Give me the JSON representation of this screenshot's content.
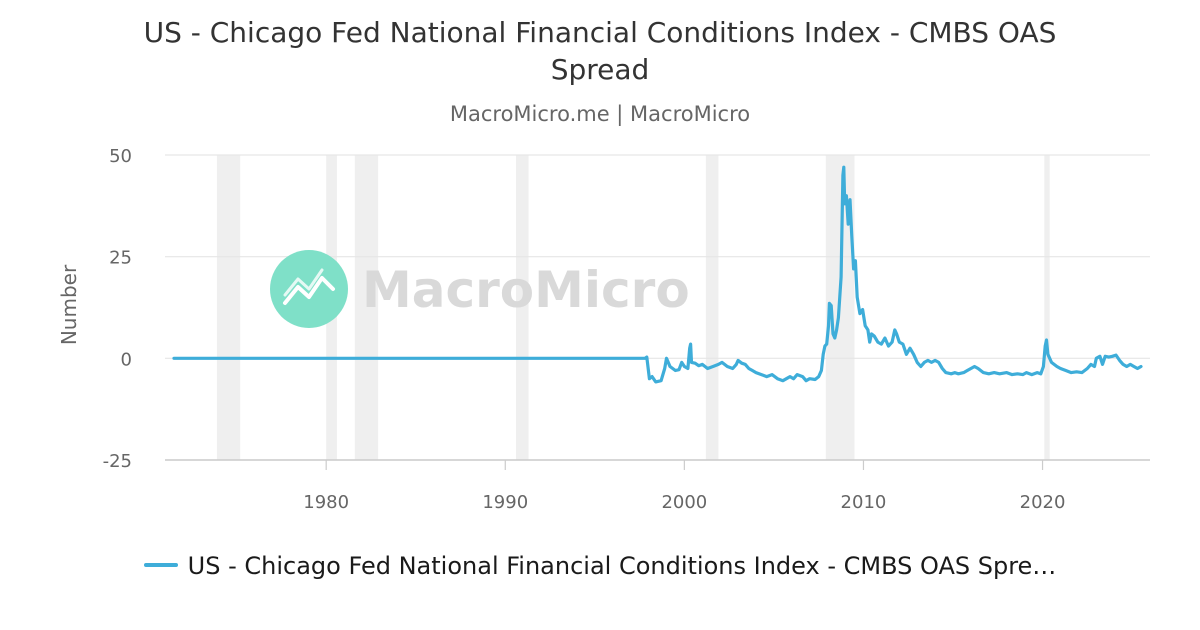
{
  "colors": {
    "series": "#3eadd9",
    "grid": "#e6e6e6",
    "recession_band": "#efefef",
    "axis": "#cccccc",
    "watermark_icon": "#7fe0c8",
    "watermark_text": "#d9d9d9"
  },
  "watermark": {
    "text": "MacroMicro"
  },
  "legend": {
    "label": "US - Chicago Fed National Financial Conditions Index - CMBS OAS Spre…"
  },
  "chart_data": {
    "type": "line",
    "title": "US - Chicago Fed National Financial Conditions Index - CMBS OAS Spread",
    "subtitle": "MacroMicro.me | MacroMicro",
    "ylabel": "Number",
    "xlabel": "",
    "xlim": [
      1971.0,
      2026.0
    ],
    "ylim": [
      -25,
      50
    ],
    "x_ticks": [
      1980,
      1990,
      2000,
      2010,
      2020
    ],
    "y_ticks": [
      50,
      25,
      0,
      -25
    ],
    "grid": "horizontal",
    "legend_position": "bottom-center",
    "recession_bands": [
      [
        1973.9,
        1975.2
      ],
      [
        1980.0,
        1980.6
      ],
      [
        1981.6,
        1982.9
      ],
      [
        1990.6,
        1991.3
      ],
      [
        2001.2,
        2001.9
      ],
      [
        2007.9,
        2009.5
      ],
      [
        2020.1,
        2020.4
      ]
    ],
    "series": [
      {
        "name": "US - Chicago Fed National Financial Conditions Index - CMBS OAS Spread",
        "points": [
          [
            1971.5,
            0.0
          ],
          [
            1997.8,
            0.0
          ],
          [
            1997.9,
            0.3
          ],
          [
            1998.05,
            -5.0
          ],
          [
            1998.2,
            -4.5
          ],
          [
            1998.4,
            -5.8
          ],
          [
            1998.7,
            -5.5
          ],
          [
            1998.9,
            -2.5
          ],
          [
            1999.0,
            0.0
          ],
          [
            1999.2,
            -2.0
          ],
          [
            1999.5,
            -3.0
          ],
          [
            1999.7,
            -2.8
          ],
          [
            1999.85,
            -1.0
          ],
          [
            2000.0,
            -2.0
          ],
          [
            2000.2,
            -2.5
          ],
          [
            2000.3,
            2.5
          ],
          [
            2000.35,
            3.5
          ],
          [
            2000.4,
            -1.0
          ],
          [
            2000.6,
            -1.2
          ],
          [
            2000.8,
            -1.8
          ],
          [
            2001.0,
            -1.5
          ],
          [
            2001.3,
            -2.5
          ],
          [
            2001.6,
            -2.0
          ],
          [
            2001.9,
            -1.5
          ],
          [
            2002.1,
            -1.0
          ],
          [
            2002.4,
            -2.0
          ],
          [
            2002.7,
            -2.5
          ],
          [
            2002.9,
            -1.5
          ],
          [
            2003.0,
            -0.5
          ],
          [
            2003.2,
            -1.2
          ],
          [
            2003.4,
            -1.5
          ],
          [
            2003.6,
            -2.5
          ],
          [
            2003.8,
            -3.0
          ],
          [
            2004.0,
            -3.5
          ],
          [
            2004.3,
            -4.0
          ],
          [
            2004.6,
            -4.5
          ],
          [
            2004.9,
            -4.0
          ],
          [
            2005.2,
            -5.0
          ],
          [
            2005.5,
            -5.5
          ],
          [
            2005.7,
            -5.0
          ],
          [
            2005.9,
            -4.5
          ],
          [
            2006.1,
            -5.0
          ],
          [
            2006.3,
            -4.0
          ],
          [
            2006.6,
            -4.5
          ],
          [
            2006.8,
            -5.5
          ],
          [
            2007.0,
            -5.0
          ],
          [
            2007.3,
            -5.2
          ],
          [
            2007.5,
            -4.5
          ],
          [
            2007.65,
            -3.0
          ],
          [
            2007.75,
            1.0
          ],
          [
            2007.85,
            3.0
          ],
          [
            2007.95,
            3.5
          ],
          [
            2008.05,
            8.0
          ],
          [
            2008.1,
            13.5
          ],
          [
            2008.2,
            13.0
          ],
          [
            2008.3,
            6.0
          ],
          [
            2008.4,
            5.0
          ],
          [
            2008.5,
            7.0
          ],
          [
            2008.6,
            10.0
          ],
          [
            2008.75,
            20.0
          ],
          [
            2008.85,
            45.0
          ],
          [
            2008.9,
            47.0
          ],
          [
            2008.95,
            38.0
          ],
          [
            2009.05,
            40.0
          ],
          [
            2009.15,
            33.0
          ],
          [
            2009.25,
            39.0
          ],
          [
            2009.35,
            30.0
          ],
          [
            2009.45,
            22.0
          ],
          [
            2009.55,
            24.0
          ],
          [
            2009.65,
            15.0
          ],
          [
            2009.8,
            11.0
          ],
          [
            2009.95,
            12.0
          ],
          [
            2010.1,
            8.0
          ],
          [
            2010.25,
            7.0
          ],
          [
            2010.35,
            4.0
          ],
          [
            2010.45,
            6.0
          ],
          [
            2010.6,
            5.5
          ],
          [
            2010.8,
            4.0
          ],
          [
            2011.0,
            3.5
          ],
          [
            2011.2,
            5.0
          ],
          [
            2011.4,
            3.0
          ],
          [
            2011.6,
            4.0
          ],
          [
            2011.75,
            7.0
          ],
          [
            2011.85,
            6.0
          ],
          [
            2012.0,
            4.0
          ],
          [
            2012.2,
            3.5
          ],
          [
            2012.4,
            1.0
          ],
          [
            2012.6,
            2.5
          ],
          [
            2012.8,
            1.0
          ],
          [
            2013.0,
            -1.0
          ],
          [
            2013.2,
            -2.0
          ],
          [
            2013.4,
            -1.0
          ],
          [
            2013.6,
            -0.5
          ],
          [
            2013.8,
            -1.0
          ],
          [
            2014.0,
            -0.5
          ],
          [
            2014.2,
            -1.0
          ],
          [
            2014.4,
            -2.5
          ],
          [
            2014.6,
            -3.5
          ],
          [
            2014.9,
            -3.8
          ],
          [
            2015.1,
            -3.5
          ],
          [
            2015.3,
            -3.8
          ],
          [
            2015.6,
            -3.5
          ],
          [
            2015.8,
            -3.0
          ],
          [
            2016.0,
            -2.5
          ],
          [
            2016.2,
            -2.0
          ],
          [
            2016.4,
            -2.5
          ],
          [
            2016.7,
            -3.5
          ],
          [
            2017.0,
            -3.8
          ],
          [
            2017.3,
            -3.5
          ],
          [
            2017.6,
            -3.8
          ],
          [
            2018.0,
            -3.5
          ],
          [
            2018.3,
            -4.0
          ],
          [
            2018.6,
            -3.8
          ],
          [
            2018.9,
            -4.0
          ],
          [
            2019.1,
            -3.5
          ],
          [
            2019.4,
            -4.0
          ],
          [
            2019.7,
            -3.5
          ],
          [
            2019.9,
            -3.8
          ],
          [
            2020.05,
            -2.0
          ],
          [
            2020.15,
            3.0
          ],
          [
            2020.22,
            4.5
          ],
          [
            2020.3,
            1.0
          ],
          [
            2020.5,
            -1.0
          ],
          [
            2020.8,
            -2.0
          ],
          [
            2021.0,
            -2.5
          ],
          [
            2021.3,
            -3.0
          ],
          [
            2021.6,
            -3.5
          ],
          [
            2021.9,
            -3.3
          ],
          [
            2022.2,
            -3.5
          ],
          [
            2022.5,
            -2.5
          ],
          [
            2022.7,
            -1.5
          ],
          [
            2022.9,
            -2.0
          ],
          [
            2023.0,
            0.0
          ],
          [
            2023.2,
            0.5
          ],
          [
            2023.35,
            -1.5
          ],
          [
            2023.5,
            0.5
          ],
          [
            2023.7,
            0.3
          ],
          [
            2023.9,
            0.5
          ],
          [
            2024.1,
            0.8
          ],
          [
            2024.3,
            -0.5
          ],
          [
            2024.5,
            -1.5
          ],
          [
            2024.7,
            -2.0
          ],
          [
            2024.9,
            -1.5
          ],
          [
            2025.1,
            -2.0
          ],
          [
            2025.3,
            -2.5
          ],
          [
            2025.5,
            -2.0
          ]
        ]
      }
    ]
  }
}
